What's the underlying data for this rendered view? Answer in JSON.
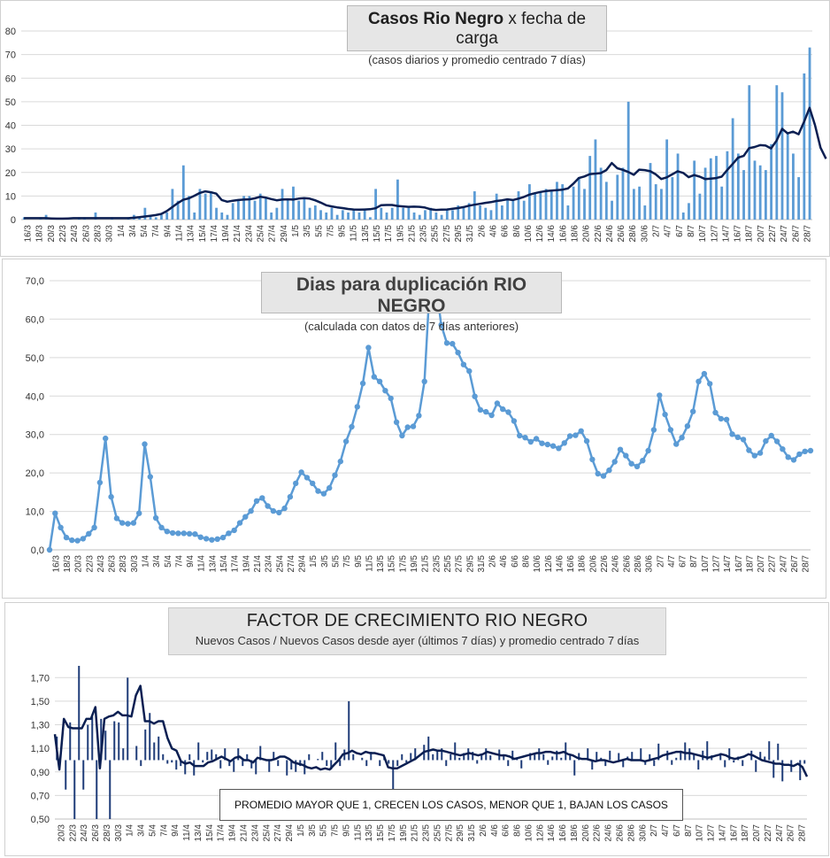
{
  "chart_data": [
    {
      "type": "bar",
      "title_bold": "Casos Rio Negro",
      "title_rest": "x fecha de carga",
      "subtitle": "(casos diarios y promedio  centrado  7 días)",
      "ylim": [
        0,
        80
      ],
      "yticks": [
        "0",
        "10",
        "20",
        "30",
        "40",
        "50",
        "60",
        "70",
        "80"
      ],
      "xtick_labels": [
        "16/3",
        "18/3",
        "20/3",
        "22/3",
        "24/3",
        "26/3",
        "28/3",
        "30/3",
        "1/4",
        "3/4",
        "5/4",
        "7/4",
        "9/4",
        "11/4",
        "13/4",
        "15/4",
        "17/4",
        "19/4",
        "21/4",
        "23/4",
        "25/4",
        "27/4",
        "29/4",
        "1/5",
        "3/5",
        "5/5",
        "7/5",
        "9/5",
        "11/5",
        "13/5",
        "15/5",
        "17/5",
        "19/5",
        "21/5",
        "23/5",
        "25/5",
        "27/5",
        "29/5",
        "31/5",
        "2/6",
        "4/6",
        "6/6",
        "8/6",
        "10/6",
        "12/6",
        "14/6",
        "16/6",
        "18/6",
        "20/6",
        "22/6",
        "24/6",
        "26/6",
        "28/6",
        "30/6",
        "2/7",
        "4/7",
        "6/7",
        "8/7",
        "10/7",
        "12/7",
        "14/7",
        "16/7",
        "18/7",
        "20/7",
        "22/7",
        "24/7",
        "26/7",
        "28/7"
      ],
      "series": [
        {
          "values": [
            1,
            0,
            0,
            1,
            2,
            0,
            0,
            0,
            0,
            0,
            1,
            1,
            0,
            3,
            0,
            0,
            1,
            0,
            0,
            1,
            2,
            1,
            5,
            2,
            1,
            2,
            3,
            13,
            8,
            23,
            10,
            3,
            13,
            11,
            12,
            5,
            3,
            2,
            7,
            8,
            10,
            10,
            8,
            11,
            9,
            3,
            5,
            13,
            9,
            14,
            8,
            9,
            5,
            6,
            4,
            3,
            5,
            2,
            4,
            3,
            4,
            3,
            4,
            1,
            13,
            5,
            3,
            5,
            17,
            5,
            5,
            3,
            2,
            4,
            5,
            3,
            2,
            4,
            4,
            6,
            5,
            7,
            12,
            6,
            5,
            4,
            11,
            6,
            9,
            8,
            12,
            8,
            15,
            11,
            12,
            13,
            12,
            16,
            15,
            6,
            14,
            18,
            13,
            27,
            34,
            22,
            16,
            8,
            19,
            22,
            50,
            13,
            14,
            6,
            24,
            15,
            13,
            34,
            18,
            28,
            3,
            7,
            25,
            11,
            22,
            26,
            27,
            14,
            29,
            43,
            28,
            21,
            57,
            25,
            23,
            21,
            32,
            57,
            54,
            37,
            28,
            18,
            62,
            73
          ]
        },
        {
          "values": [
            0.6,
            0.6,
            0.6,
            0.6,
            0.6,
            0.5,
            0.4,
            0.4,
            0.5,
            0.6,
            0.6,
            0.6,
            0.6,
            0.6,
            0.6,
            0.6,
            0.6,
            0.6,
            0.6,
            0.6,
            0.8,
            1.0,
            1.3,
            1.6,
            1.9,
            2.4,
            3.6,
            5.3,
            7.0,
            8.4,
            9.0,
            10.1,
            11.3,
            12.0,
            11.6,
            11.0,
            8.3,
            7.6,
            8.0,
            8.3,
            8.5,
            8.6,
            9.0,
            9.7,
            9.3,
            8.7,
            8.2,
            8.5,
            8.6,
            8.5,
            8.9,
            9.1,
            8.9,
            8.2,
            7.2,
            6.1,
            5.6,
            5.2,
            4.9,
            4.5,
            4.3,
            4.2,
            4.3,
            4.4,
            4.8,
            6.1,
            6.2,
            6.2,
            5.8,
            5.6,
            5.4,
            5.5,
            5.4,
            5.1,
            4.4,
            4.1,
            4.2,
            4.3,
            4.6,
            4.9,
            5.3,
            5.9,
            6.3,
            6.7,
            7.1,
            7.4,
            7.9,
            8.2,
            8.6,
            8.3,
            8.9,
            9.6,
            10.6,
            11.2,
            11.7,
            12.1,
            12.3,
            12.5,
            12.7,
            13.2,
            15.2,
            17.6,
            18.3,
            19.3,
            19.5,
            19.7,
            21.0,
            24.0,
            21.8,
            21.1,
            20.2,
            19.0,
            21.2,
            21.0,
            20.5,
            19.2,
            17.2,
            17.9,
            19.2,
            20.5,
            19.8,
            18.0,
            18.9,
            18.2,
            17.2,
            17.4,
            17.6,
            18.2,
            21.0,
            23.6,
            26.3,
            27.0,
            30.3,
            30.8,
            31.6,
            31.4,
            30.2,
            33.5,
            38.5,
            36.6,
            37.3,
            36.2,
            41.5,
            47.4,
            40.0,
            30.5,
            25.8
          ]
        }
      ]
    },
    {
      "type": "line",
      "title": "Dias para duplicación RIO NEGRO",
      "subtitle": "(calculada con datos de 7 días anteriores)",
      "ylim": [
        0,
        70
      ],
      "yticks": [
        "0,0",
        "10,0",
        "20,0",
        "30,0",
        "40,0",
        "50,0",
        "60,0",
        "70,0"
      ],
      "xtick_labels": [
        "16/3",
        "18/3",
        "20/3",
        "22/3",
        "24/3",
        "26/3",
        "28/3",
        "30/3",
        "1/4",
        "3/4",
        "5/4",
        "7/4",
        "9/4",
        "11/4",
        "13/4",
        "15/4",
        "17/4",
        "19/4",
        "21/4",
        "23/4",
        "25/4",
        "27/4",
        "29/4",
        "1/5",
        "3/5",
        "5/5",
        "7/5",
        "9/5",
        "11/5",
        "13/5",
        "15/5",
        "17/5",
        "19/5",
        "21/5",
        "23/5",
        "25/5",
        "27/5",
        "29/5",
        "31/5",
        "2/6",
        "4/6",
        "6/6",
        "8/6",
        "10/6",
        "12/6",
        "14/6",
        "16/6",
        "18/6",
        "20/6",
        "22/6",
        "24/6",
        "26/6",
        "28/6",
        "30/6",
        "2/7",
        "4/7",
        "6/7",
        "8/7",
        "10/7",
        "12/7",
        "14/7",
        "16/7",
        "18/7",
        "20/7",
        "22/7",
        "24/7",
        "26/7",
        "28/7"
      ],
      "series": [
        {
          "values": [
            0.0,
            9.5,
            5.8,
            3.2,
            2.5,
            2.4,
            2.9,
            4.2,
            5.8,
            17.5,
            29.0,
            13.8,
            8.2,
            7.0,
            6.8,
            7.0,
            9.5,
            27.5,
            19.0,
            8.3,
            5.8,
            4.8,
            4.4,
            4.3,
            4.3,
            4.2,
            4.1,
            3.3,
            2.9,
            2.6,
            2.8,
            3.2,
            4.3,
            5.1,
            7.0,
            8.6,
            10.1,
            12.7,
            13.5,
            11.4,
            10.1,
            9.7,
            10.8,
            13.8,
            17.3,
            20.2,
            18.8,
            17.3,
            15.3,
            14.6,
            16.1,
            19.4,
            23.0,
            28.2,
            32.0,
            37.2,
            43.3,
            52.6,
            45.0,
            43.8,
            41.4,
            39.4,
            33.2,
            29.7,
            31.9,
            32.1,
            34.9,
            43.8,
            70.0,
            71.0,
            58.5,
            53.8,
            53.6,
            51.3,
            48.2,
            46.5,
            39.9,
            36.4,
            35.9,
            35.0,
            38.1,
            36.6,
            35.8,
            33.5,
            29.7,
            29.2,
            28.1,
            28.9,
            27.7,
            27.4,
            27.0,
            26.4,
            27.8,
            29.6,
            29.8,
            30.9,
            28.3,
            23.5,
            19.8,
            19.2,
            20.7,
            22.9,
            26.1,
            24.5,
            22.4,
            21.7,
            23.2,
            25.8,
            31.2,
            40.2,
            35.2,
            31.2,
            27.5,
            29.2,
            32.2,
            36.0,
            43.8,
            45.8,
            43.2,
            35.7,
            34.1,
            33.9,
            30.1,
            29.3,
            28.7,
            25.9,
            24.5,
            25.2,
            28.3,
            29.7,
            28.2,
            26.2,
            24.1,
            23.4,
            24.9,
            25.6,
            25.8
          ]
        }
      ]
    },
    {
      "type": "bar",
      "title": "FACTOR DE CRECIMIENTO RIO NEGRO",
      "subtitle": "Nuevos Casos  / Nuevos Casos desde ayer (últimos 7 días) y promedio  centrado  7 días",
      "annotation": "PROMEDIO MAYOR QUE 1, CRECEN LOS CASOS, MENOR QUE 1, BAJAN LOS CASOS",
      "baseline": 1.0,
      "ylim": [
        0.5,
        1.8
      ],
      "yticks": [
        "0,50",
        "0,70",
        "0,90",
        "1,10",
        "1,30",
        "1,50",
        "1,70"
      ],
      "xtick_labels": [
        "20/3",
        "22/3",
        "24/3",
        "26/3",
        "28/3",
        "30/3",
        "1/4",
        "3/4",
        "5/4",
        "7/4",
        "9/4",
        "11/4",
        "13/4",
        "15/4",
        "17/4",
        "19/4",
        "21/4",
        "23/4",
        "25/4",
        "27/4",
        "29/4",
        "1/5",
        "3/5",
        "5/5",
        "7/5",
        "9/5",
        "11/5",
        "13/5",
        "15/5",
        "17/5",
        "19/5",
        "21/5",
        "23/5",
        "25/5",
        "27/5",
        "29/5",
        "31/5",
        "2/6",
        "4/6",
        "6/6",
        "8/6",
        "10/6",
        "12/6",
        "14/6",
        "16/6",
        "18/6",
        "20/6",
        "22/6",
        "24/6",
        "26/6",
        "28/6",
        "30/6",
        "2/7",
        "4/7",
        "6/7",
        "8/7",
        "10/7",
        "12/7",
        "14/7",
        "16/7",
        "18/7",
        "20/7",
        "22/7",
        "24/7",
        "26/7",
        "28/7"
      ],
      "series": [
        {
          "values": [
            1.2,
            1.0,
            0.75,
            1.32,
            0.5,
            1.8,
            0.75,
            1.3,
            1.37,
            0.5,
            1.35,
            1.25,
            0.5,
            1.33,
            1.32,
            1.1,
            1.7,
            1.0,
            1.12,
            0.95,
            1.26,
            1.4,
            1.15,
            1.2,
            1.05,
            0.97,
            0.98,
            0.92,
            0.95,
            0.88,
            1.05,
            0.87,
            1.15,
            0.98,
            1.07,
            1.09,
            1.05,
            0.93,
            1.1,
            0.95,
            0.9,
            1.1,
            0.95,
            1.05,
            0.93,
            0.88,
            1.12,
            1.0,
            0.9,
            1.07,
            0.95,
            1.0,
            0.87,
            0.92,
            0.9,
            0.95,
            0.88,
            1.05,
            1.0,
            1.01,
            1.07,
            0.95,
            0.92,
            1.15,
            0.95,
            1.09,
            1.5,
            1.05,
            1.0,
            1.02,
            0.95,
            1.07,
            1.0,
            0.95,
            1.02,
            0.97,
            0.7,
            0.95,
            1.05,
            0.98,
            1.06,
            1.1,
            1.0,
            1.13,
            1.2,
            1.05,
            1.08,
            1.1,
            0.95,
            1.05,
            1.15,
            1.02,
            1.06,
            1.1,
            1.07,
            0.97,
            1.05,
            1.1,
            1.04,
            1.0,
            1.09,
            1.05,
            0.95,
            1.08,
            1.02,
            0.93,
            1.0,
            1.06,
            1.05,
            1.1,
            1.05,
            0.96,
            1.03,
            1.08,
            1.02,
            1.15,
            1.05,
            0.87,
            1.06,
            1.0,
            1.1,
            0.92,
            1.07,
            1.02,
            0.95,
            1.08,
            1.0,
            1.06,
            0.94,
            1.03,
            1.07,
            1.0,
            1.1,
            0.96,
            1.05,
            0.95,
            1.14,
            1.0,
            1.08,
            0.96,
            1.02,
            1.08,
            1.15,
            1.1,
            1.05,
            0.92,
            1.08,
            1.16,
            1.04,
            1.0,
            1.06,
            0.94,
            1.1,
            0.98,
            1.03,
            0.95,
            1.0,
            1.08,
            0.9,
            1.07,
            1.03,
            1.16,
            0.85,
            1.14,
            0.82,
            1.0,
            0.9,
            1.0,
            0.83,
            0.97
          ]
        },
        {
          "values": [
            1.22,
            0.92,
            1.35,
            1.28,
            1.27,
            1.27,
            1.27,
            1.35,
            1.35,
            1.45,
            0.93,
            1.35,
            1.37,
            1.38,
            1.41,
            1.38,
            1.38,
            1.37,
            1.55,
            1.63,
            1.33,
            1.33,
            1.31,
            1.33,
            1.33,
            1.19,
            1.1,
            1.08,
            0.99,
            0.97,
            0.98,
            0.95,
            0.95,
            0.95,
            0.98,
            0.99,
            1.01,
            1.03,
            1.01,
            0.99,
            1.02,
            1.03,
            1.0,
            1.0,
            0.98,
            1.02,
            1.01,
            1.0,
            1.0,
            1.01,
            1.03,
            1.03,
            1.01,
            0.98,
            0.97,
            0.96,
            0.94,
            0.93,
            0.94,
            0.92,
            0.93,
            0.92,
            0.96,
            1.0,
            1.05,
            1.06,
            1.08,
            1.06,
            1.05,
            1.07,
            1.06,
            1.06,
            1.05,
            1.04,
            0.94,
            0.93,
            0.93,
            0.95,
            0.97,
            0.99,
            1.01,
            1.04,
            1.07,
            1.08,
            1.09,
            1.08,
            1.08,
            1.07,
            1.06,
            1.05,
            1.04,
            1.05,
            1.06,
            1.05,
            1.04,
            1.05,
            1.07,
            1.06,
            1.05,
            1.04,
            1.04,
            1.03,
            1.01,
            1.02,
            1.03,
            1.04,
            1.05,
            1.06,
            1.06,
            1.07,
            1.07,
            1.06,
            1.06,
            1.07,
            1.05,
            1.04,
            1.02,
            1.01,
            1.01,
            1.0,
            0.99,
            1.0,
            1.0,
            0.99,
            0.98,
            0.99,
            1.0,
            1.01,
            1.0,
            1.0,
            1.0,
            0.99,
            1.0,
            1.01,
            1.02,
            1.04,
            1.05,
            1.06,
            1.07,
            1.07,
            1.06,
            1.06,
            1.05,
            1.04,
            1.03,
            1.02,
            1.03,
            1.04,
            1.05,
            1.04,
            1.02,
            1.01,
            1.02,
            1.03,
            1.05,
            1.04,
            1.02,
            1.0,
            0.99,
            0.98,
            0.97,
            0.97,
            0.96,
            0.96,
            0.95,
            0.97,
            0.94,
            0.86
          ]
        }
      ]
    }
  ]
}
